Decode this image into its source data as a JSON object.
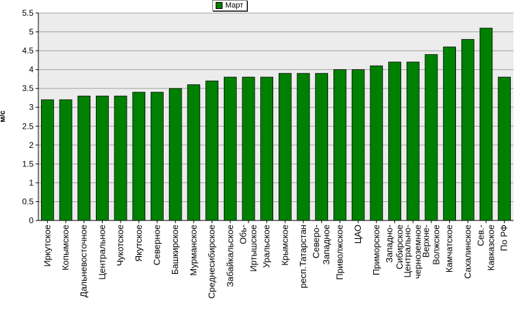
{
  "chart_data": {
    "type": "bar",
    "ylabel": "м/с",
    "ylim": [
      0,
      5.5
    ],
    "yticks": [
      "0",
      "0.5",
      "1",
      "1.5",
      "2",
      "2.5",
      "3",
      "3.5",
      "4",
      "4.5",
      "5",
      "5.5"
    ],
    "grid": true,
    "legend_position": "top-center",
    "series": [
      {
        "name": "Март",
        "color": "#008000",
        "values": [
          3.2,
          3.2,
          3.3,
          3.3,
          3.3,
          3.4,
          3.4,
          3.5,
          3.6,
          3.7,
          3.8,
          3.8,
          3.8,
          3.9,
          3.9,
          3.9,
          4.0,
          4.0,
          4.1,
          4.2,
          4.2,
          4.4,
          4.6,
          4.8,
          5.1,
          3.8
        ]
      }
    ],
    "categories": [
      [
        "Иркутское"
      ],
      [
        "Копымское"
      ],
      [
        "Дальневосточное"
      ],
      [
        "Центральное"
      ],
      [
        "Чукотское"
      ],
      [
        "Якутское"
      ],
      [
        "Северное"
      ],
      [
        "Башкирское"
      ],
      [
        "Мурманское"
      ],
      [
        "Среднесибирское"
      ],
      [
        "Забайкальское"
      ],
      [
        "Обь-",
        "Иртышское"
      ],
      [
        "Уральское"
      ],
      [
        "Крымское"
      ],
      [
        "респ.Татарстан"
      ],
      [
        "Северо-",
        "Западное"
      ],
      [
        "Приволжское"
      ],
      [
        "ЦАО"
      ],
      [
        "Приморское"
      ],
      [
        "Западно-",
        "Сибирское"
      ],
      [
        "Центрально-",
        "черноземное"
      ],
      [
        "Верхне-",
        "Волжское"
      ],
      [
        "Камчатское"
      ],
      [
        "Сахалинское"
      ],
      [
        "Сев.-",
        "Кавказское"
      ],
      [
        "По РФ"
      ]
    ]
  }
}
